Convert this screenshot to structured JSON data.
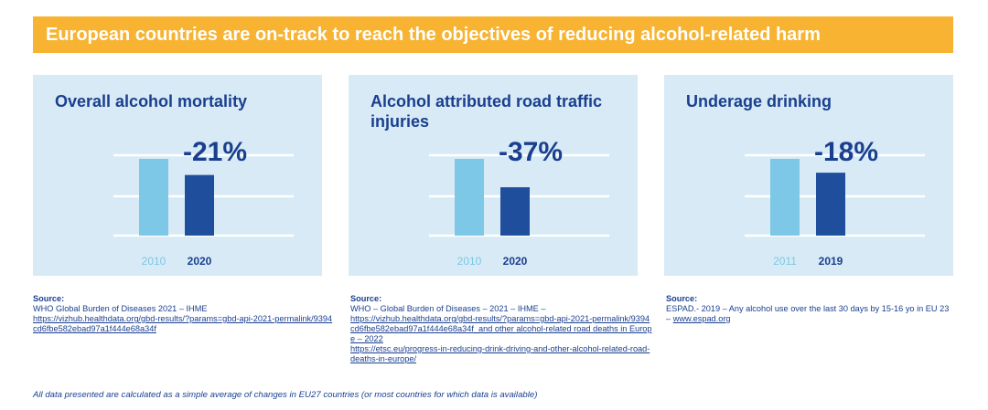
{
  "banner": {
    "title": "European countries are on-track to reach the objectives of reducing alcohol-related harm",
    "color": "#f7b331"
  },
  "colors": {
    "light_bar": "#7cc8e6",
    "dark_bar": "#1f4e9c",
    "panel_bg": "#d7eaf5",
    "text": "#1a3f8f"
  },
  "chart_data": [
    {
      "type": "bar",
      "title": "Overall alcohol mortality",
      "categories": [
        "2010",
        "2020"
      ],
      "values": [
        100,
        79
      ],
      "change_label": "-21%"
    },
    {
      "type": "bar",
      "title": "Alcohol attributed road traffic injuries",
      "categories": [
        "2010",
        "2020"
      ],
      "values": [
        100,
        63
      ],
      "change_label": "-37%"
    },
    {
      "type": "bar",
      "title": "Underage drinking",
      "categories": [
        "2011",
        "2019"
      ],
      "values": [
        100,
        82
      ],
      "change_label": "-18%"
    }
  ],
  "sources": [
    {
      "label": "Source:",
      "text": "WHO Global Burden of Diseases 2021 – IHME",
      "links": [
        "https://vizhub.healthdata.org/gbd-results/?params=gbd-api-2021-permalink/9394cd6fbe582ebad97a1f444e68a34f"
      ]
    },
    {
      "label": "Source:",
      "text": "WHO – Global Burden of Diseases – 2021 – IHME –",
      "links": [
        "https://vizhub.healthdata.org/gbd-results/?params=gbd-api-2021-permalink/9394cd6fbe582ebad97a1f444e68a34f_and other alcohol-related road deaths in Europe – 2022",
        "https://etsc.eu/progress-in-reducing-drink-driving-and-other-alcohol-related-road-deaths-in-europe/"
      ]
    },
    {
      "label": "Source:",
      "text": "ESPAD.- 2019 – Any alcohol use over the last 30 days by 15-16 yo in EU 23 –",
      "links": [
        "www.espad.org"
      ]
    }
  ],
  "footnote": "All data presented are calculated as a simple average of changes in EU27 countries (or most countries for which data is available)"
}
